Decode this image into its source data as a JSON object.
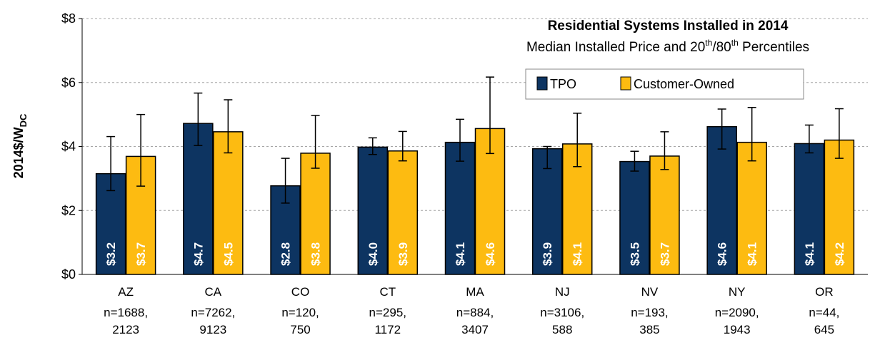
{
  "chart_data": {
    "type": "bar",
    "title": "Residential Systems Installed in 2014",
    "subtitle": {
      "part1": "Median Installed Price and 20",
      "sup1": "th",
      "part2": "/80",
      "sup2": "th",
      "part3": " Percentiles"
    },
    "ylabel": {
      "main": "2014$/W",
      "sub": "DC"
    },
    "ylim": [
      0,
      8
    ],
    "yticks": [
      {
        "value": 0,
        "label": "$0"
      },
      {
        "value": 2,
        "label": "$2"
      },
      {
        "value": 4,
        "label": "$4"
      },
      {
        "value": 6,
        "label": "$6"
      },
      {
        "value": 8,
        "label": "$8"
      }
    ],
    "grid": true,
    "legend_position": "top-right",
    "categories": [
      "AZ",
      "CA",
      "CO",
      "CT",
      "MA",
      "NJ",
      "NV",
      "NY",
      "OR"
    ],
    "category_counts": [
      [
        "n=1688,",
        "2123"
      ],
      [
        "n=7262,",
        "9123"
      ],
      [
        "n=120,",
        "750"
      ],
      [
        "n=295,",
        "1172"
      ],
      [
        "n=884,",
        "3407"
      ],
      [
        "n=3106,",
        "588"
      ],
      [
        "n=193,",
        "385"
      ],
      [
        "n=2090,",
        "1943"
      ],
      [
        "n=44,",
        "645"
      ]
    ],
    "series": [
      {
        "name": "TPO",
        "color": "#0d3461",
        "label_color": "#ffffff",
        "values": [
          3.15,
          4.72,
          2.77,
          3.98,
          4.13,
          3.93,
          3.53,
          4.62,
          4.09
        ],
        "p20": [
          2.62,
          4.03,
          2.23,
          3.75,
          3.54,
          3.31,
          3.23,
          3.92,
          3.8
        ],
        "p80": [
          4.31,
          5.67,
          3.63,
          4.27,
          4.85,
          4.0,
          3.85,
          5.17,
          4.67
        ],
        "labels": [
          "$3.2",
          "$4.7",
          "$2.8",
          "$4.0",
          "$4.1",
          "$3.9",
          "$3.5",
          "$4.6",
          "$4.1"
        ]
      },
      {
        "name": "Customer-Owned",
        "color": "#fdbb11",
        "label_color": "#ffffff",
        "values": [
          3.69,
          4.46,
          3.79,
          3.86,
          4.56,
          4.08,
          3.7,
          4.13,
          4.2
        ],
        "p20": [
          2.76,
          3.8,
          3.32,
          3.55,
          3.78,
          3.37,
          3.28,
          3.55,
          3.63
        ],
        "p80": [
          5.0,
          5.46,
          4.97,
          4.47,
          6.17,
          5.04,
          4.46,
          5.22,
          5.18
        ],
        "labels": [
          "$3.7",
          "$4.5",
          "$3.8",
          "$3.9",
          "$4.6",
          "$4.1",
          "$3.7",
          "$4.1",
          "$4.2"
        ]
      }
    ]
  }
}
